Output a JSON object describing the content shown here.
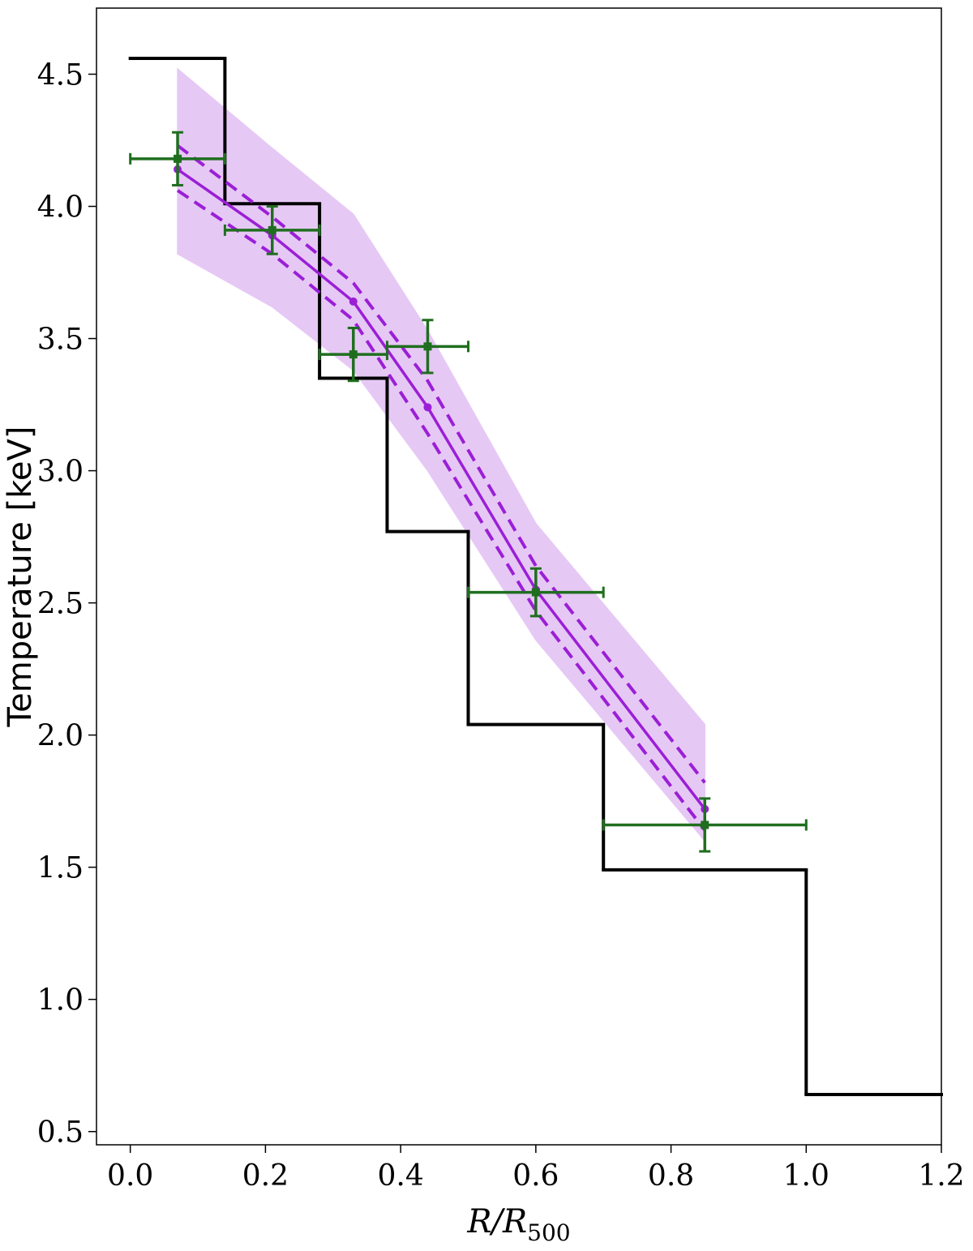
{
  "chart_data": {
    "type": "line",
    "xlabel_main": "R/R",
    "xlabel_sub": "500",
    "ylabel": "Temperature [keV]",
    "xlim": [
      -0.05,
      1.2
    ],
    "ylim": [
      0.45,
      4.75
    ],
    "xticks": [
      0.0,
      0.2,
      0.4,
      0.6,
      0.8,
      1.0,
      1.2
    ],
    "xtick_labels": [
      "0.0",
      "0.2",
      "0.4",
      "0.6",
      "0.8",
      "1.0",
      "1.2"
    ],
    "yticks": [
      0.5,
      1.0,
      1.5,
      2.0,
      2.5,
      3.0,
      3.5,
      4.0,
      4.5
    ],
    "ytick_labels": [
      "0.5",
      "1.0",
      "1.5",
      "2.0",
      "2.5",
      "3.0",
      "3.5",
      "4.0",
      "4.5"
    ],
    "grid": false,
    "colors": {
      "step": "#000000",
      "model": "#9b1fd6",
      "band": "#e6c8f5",
      "data": "#1f6e1f"
    },
    "series": [
      {
        "kind": "step",
        "edges": [
          0.0,
          0.14,
          0.28,
          0.38,
          0.5,
          0.7,
          1.0,
          1.2
        ],
        "values": [
          4.56,
          4.01,
          3.35,
          2.77,
          2.04,
          1.49,
          0.64
        ]
      },
      {
        "kind": "band",
        "x": [
          0.07,
          0.21,
          0.33,
          0.44,
          0.6,
          0.85
        ],
        "lower": [
          3.82,
          3.62,
          3.38,
          3.0,
          2.36,
          1.6
        ],
        "upper": [
          4.52,
          4.22,
          3.97,
          3.53,
          2.8,
          2.04
        ]
      },
      {
        "kind": "line",
        "x": [
          0.07,
          0.21,
          0.33,
          0.44,
          0.6,
          0.85
        ],
        "y": [
          4.14,
          3.89,
          3.64,
          3.24,
          2.55,
          1.72
        ]
      },
      {
        "kind": "dashed",
        "x": [
          0.07,
          0.21,
          0.33,
          0.44,
          0.6,
          0.85
        ],
        "upper": [
          4.23,
          3.96,
          3.71,
          3.34,
          2.64,
          1.82
        ],
        "lower": [
          4.06,
          3.82,
          3.57,
          3.14,
          2.47,
          1.64
        ]
      },
      {
        "kind": "errorbar",
        "x": [
          0.07,
          0.21,
          0.33,
          0.44,
          0.6,
          0.85
        ],
        "y": [
          4.18,
          3.91,
          3.44,
          3.47,
          2.54,
          1.66
        ],
        "xerr": [
          0.07,
          0.07,
          0.05,
          0.06,
          0.1,
          0.15
        ],
        "yerr": [
          0.1,
          0.09,
          0.1,
          0.1,
          0.09,
          0.1
        ]
      }
    ]
  }
}
